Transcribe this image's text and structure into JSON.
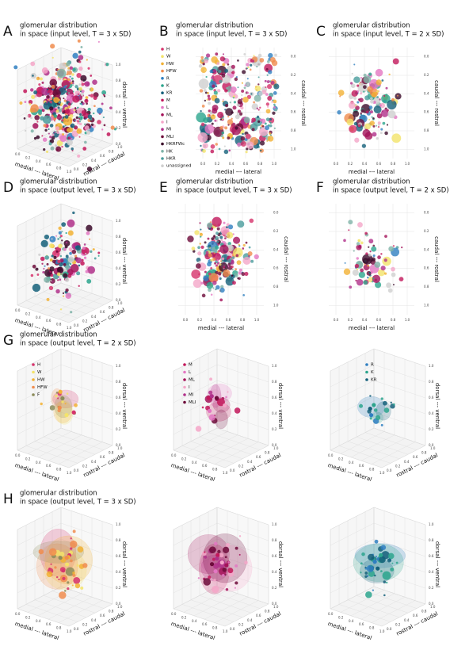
{
  "ticks": [
    {
      "value": 0,
      "label": "0.0"
    },
    {
      "value": 0.2,
      "label": "0.2"
    },
    {
      "value": 0.4,
      "label": "0.4"
    },
    {
      "value": 0.6,
      "label": "0.6"
    },
    {
      "value": 0.8,
      "label": "0.8"
    },
    {
      "value": 1,
      "label": "1.0"
    }
  ],
  "labels": {
    "ml": "medial --- lateral",
    "rc": "rostral --- caudal",
    "dv": "dorsal --- ventral",
    "cr": "caudal --- rostral"
  },
  "legend": [
    {
      "name": "H",
      "color": "#d6336c"
    },
    {
      "name": "W",
      "color": "#f3e36a"
    },
    {
      "name": "HW",
      "color": "#f2b134"
    },
    {
      "name": "HFW",
      "color": "#f08c4e"
    },
    {
      "name": "R",
      "color": "#2f7fc1"
    },
    {
      "name": "K",
      "color": "#2ca58d"
    },
    {
      "name": "KR",
      "color": "#15607a"
    },
    {
      "name": "M",
      "color": "#c2185b"
    },
    {
      "name": "L",
      "color": "#e377c2"
    },
    {
      "name": "ML",
      "color": "#a4135a"
    },
    {
      "name": "I",
      "color": "#f4a6c8"
    },
    {
      "name": "MI",
      "color": "#b0308a"
    },
    {
      "name": "MLI",
      "color": "#6d0b3a"
    },
    {
      "name": "HKRFWc",
      "color": "#3b0b2a"
    },
    {
      "name": "HK",
      "color": "#7fb3a8"
    },
    {
      "name": "HKR",
      "color": "#4a9c9c"
    },
    {
      "name": "unassigned",
      "color": "#cfcfcf"
    }
  ],
  "panels": [
    {
      "letter": "A",
      "title": [
        "glomerular distribution",
        "in space (input level, T = 3 x SD)"
      ],
      "view": "3d"
    },
    {
      "letter": "B",
      "title": [
        "glomerular distribution",
        "in space (input level, T = 3 x SD)"
      ],
      "view": "top"
    },
    {
      "letter": "C",
      "title": [
        "glomerular distribution",
        "in space (input level, T = 2 x SD)"
      ],
      "view": "top"
    },
    {
      "letter": "D",
      "title": [
        "glomerular distribution",
        "in space (output level, T = 3 x SD)"
      ],
      "view": "3d"
    },
    {
      "letter": "E",
      "title": [
        "glomerular distribution",
        "in space (output level, T = 3 x SD)"
      ],
      "view": "top"
    },
    {
      "letter": "F",
      "title": [
        "glomerular distribution",
        "in space (output level, T = 2 x SD)"
      ],
      "view": "top"
    }
  ],
  "rows": [
    {
      "letter": "G",
      "title": [
        "glomerular distribution",
        "in space (output level, T = 2 x SD)"
      ]
    },
    {
      "letter": "H",
      "title": [
        "glomerular distribution",
        "in space (output level, T = 3 x SD)"
      ]
    }
  ],
  "group_legends": [
    [
      {
        "name": "H",
        "color": "#d6336c"
      },
      {
        "name": "W",
        "color": "#f3e36a"
      },
      {
        "name": "HW",
        "color": "#f2b134"
      },
      {
        "name": "HFW",
        "color": "#f08c4e"
      },
      {
        "name": "F",
        "color": "#8c8c5a"
      }
    ],
    [
      {
        "name": "M",
        "color": "#c2185b"
      },
      {
        "name": "L",
        "color": "#e377c2"
      },
      {
        "name": "ML",
        "color": "#a4135a"
      },
      {
        "name": "I",
        "color": "#f4a6c8"
      },
      {
        "name": "MI",
        "color": "#b0308a"
      },
      {
        "name": "MLI",
        "color": "#6d0b3a"
      }
    ],
    [
      {
        "name": "R",
        "color": "#2f7fc1"
      },
      {
        "name": "K",
        "color": "#2ca58d"
      },
      {
        "name": "KR",
        "color": "#15607a"
      }
    ]
  ]
}
